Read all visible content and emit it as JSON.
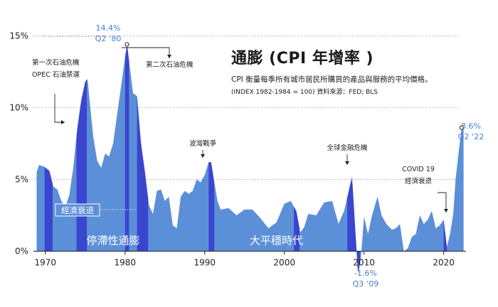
{
  "header": {
    "title": "通膨 (CPI 年增率 )",
    "subtitle": "CPI 衡量每季所有城市居民所購買的產品與服務的平均價格。",
    "source": "(INDEX 1982-1984 = 100)   資料來源：FED; BLS"
  },
  "chart_data": {
    "type": "area",
    "x_ticks": [
      1970,
      1980,
      1990,
      2000,
      2010,
      2020
    ],
    "y_ticks": [
      "0%",
      "5%",
      "10%",
      "15%"
    ],
    "y_tick_values": [
      0,
      5,
      10,
      15
    ],
    "xlim": [
      1968.5,
      2022.8
    ],
    "ylim": [
      -2.2,
      16.5
    ],
    "grid": "dotted-horizontal",
    "colors": {
      "area": "#5b8fd8",
      "recession": "#3a45d0",
      "highlight": "#5b8fd8",
      "text": "#222222"
    },
    "series": [
      {
        "points": [
          [
            1968.9,
            5.5
          ],
          [
            1969.2,
            6.0
          ],
          [
            1969.8,
            5.9
          ],
          [
            1970.5,
            5.6
          ],
          [
            1971.0,
            4.5
          ],
          [
            1971.5,
            4.3
          ],
          [
            1972.0,
            3.5
          ],
          [
            1972.5,
            3.1
          ],
          [
            1973.0,
            3.9
          ],
          [
            1973.5,
            5.8
          ],
          [
            1974.0,
            8.5
          ],
          [
            1974.5,
            10.5
          ],
          [
            1975.0,
            11.8
          ],
          [
            1975.3,
            12.0
          ],
          [
            1975.6,
            10.2
          ],
          [
            1976.0,
            8.0
          ],
          [
            1976.5,
            6.3
          ],
          [
            1977.0,
            5.8
          ],
          [
            1977.5,
            6.8
          ],
          [
            1978.0,
            6.6
          ],
          [
            1978.5,
            7.5
          ],
          [
            1979.0,
            9.5
          ],
          [
            1979.5,
            11.5
          ],
          [
            1980.0,
            13.5
          ],
          [
            1980.25,
            14.4
          ],
          [
            1980.6,
            12.8
          ],
          [
            1981.0,
            11.0
          ],
          [
            1981.5,
            10.8
          ],
          [
            1982.0,
            7.5
          ],
          [
            1982.5,
            5.5
          ],
          [
            1983.0,
            3.2
          ],
          [
            1983.5,
            2.6
          ],
          [
            1984.0,
            4.2
          ],
          [
            1984.5,
            4.3
          ],
          [
            1985.0,
            3.5
          ],
          [
            1985.5,
            3.8
          ],
          [
            1986.0,
            1.8
          ],
          [
            1986.5,
            1.6
          ],
          [
            1987.0,
            3.8
          ],
          [
            1987.5,
            4.2
          ],
          [
            1988.0,
            4.0
          ],
          [
            1988.5,
            4.2
          ],
          [
            1989.0,
            5.0
          ],
          [
            1989.5,
            4.8
          ],
          [
            1990.0,
            5.3
          ],
          [
            1990.5,
            6.2
          ],
          [
            1990.8,
            6.2
          ],
          [
            1991.2,
            4.8
          ],
          [
            1991.6,
            3.5
          ],
          [
            1992.0,
            2.9
          ],
          [
            1993.0,
            3.0
          ],
          [
            1994.0,
            2.5
          ],
          [
            1995.0,
            2.9
          ],
          [
            1996.0,
            2.9
          ],
          [
            1997.0,
            2.3
          ],
          [
            1998.0,
            1.6
          ],
          [
            1999.0,
            2.0
          ],
          [
            2000.0,
            3.3
          ],
          [
            2000.8,
            3.5
          ],
          [
            2001.5,
            2.8
          ],
          [
            2002.0,
            1.3
          ],
          [
            2002.5,
            1.7
          ],
          [
            2003.0,
            2.6
          ],
          [
            2004.0,
            2.5
          ],
          [
            2005.0,
            3.4
          ],
          [
            2006.0,
            3.5
          ],
          [
            2006.8,
            1.9
          ],
          [
            2007.5,
            2.8
          ],
          [
            2008.0,
            4.0
          ],
          [
            2008.5,
            5.2
          ],
          [
            2008.9,
            1.5
          ],
          [
            2009.25,
            -1.6
          ],
          [
            2009.6,
            -0.5
          ],
          [
            2010.0,
            2.4
          ],
          [
            2010.5,
            1.2
          ],
          [
            2011.0,
            2.5
          ],
          [
            2011.7,
            3.8
          ],
          [
            2012.2,
            2.5
          ],
          [
            2012.8,
            1.9
          ],
          [
            2013.5,
            1.5
          ],
          [
            2014.0,
            1.6
          ],
          [
            2014.5,
            1.9
          ],
          [
            2015.0,
            0.0
          ],
          [
            2015.5,
            0.2
          ],
          [
            2016.0,
            1.0
          ],
          [
            2016.5,
            1.2
          ],
          [
            2017.0,
            2.5
          ],
          [
            2017.5,
            1.9
          ],
          [
            2018.0,
            2.2
          ],
          [
            2018.5,
            2.8
          ],
          [
            2019.0,
            1.6
          ],
          [
            2019.5,
            1.8
          ],
          [
            2020.0,
            2.2
          ],
          [
            2020.4,
            0.3
          ],
          [
            2020.8,
            1.2
          ],
          [
            2021.2,
            2.6
          ],
          [
            2021.5,
            5.0
          ],
          [
            2021.9,
            7.0
          ],
          [
            2022.25,
            8.6
          ],
          [
            2022.5,
            8.6
          ]
        ]
      }
    ],
    "recessions": [
      [
        1969.9,
        1970.9
      ],
      [
        1973.9,
        1975.2
      ],
      [
        1980.0,
        1980.5
      ],
      [
        1981.5,
        1982.9
      ],
      [
        1990.5,
        1991.2
      ],
      [
        2001.2,
        2001.9
      ],
      [
        2007.9,
        2009.5
      ],
      [
        2020.0,
        2020.4
      ]
    ],
    "annotations": [
      {
        "id": "oil1",
        "lines": [
          "第一次石油危機",
          "OPEC 石油禁運"
        ]
      },
      {
        "id": "oil2",
        "lines": [
          "第二次石油危機"
        ]
      },
      {
        "id": "gulf",
        "lines": [
          "波灣戰爭"
        ]
      },
      {
        "id": "gfc",
        "lines": [
          "全球金融危機"
        ]
      },
      {
        "id": "covid",
        "lines": [
          "COVID 19",
          "經濟衰退"
        ]
      }
    ],
    "callouts": [
      {
        "id": "peak80",
        "lines": [
          "14.4%",
          "Q2 ‘80"
        ],
        "x": 1980.25,
        "y": 14.4
      },
      {
        "id": "low09",
        "lines": [
          "-1.6%",
          "Q3 ‘09"
        ],
        "x": 2009.25,
        "y": -1.6
      },
      {
        "id": "peak22",
        "lines": [
          "8.6%",
          "Q2 ‘22"
        ],
        "x": 2022.25,
        "y": 8.6
      }
    ],
    "legend": {
      "label": "經濟衰退",
      "placement": "bottom-left"
    },
    "era_labels": [
      {
        "id": "stagflation",
        "text": "停滯性通膨"
      },
      {
        "id": "moderation",
        "text": "大平穩時代"
      }
    ]
  }
}
